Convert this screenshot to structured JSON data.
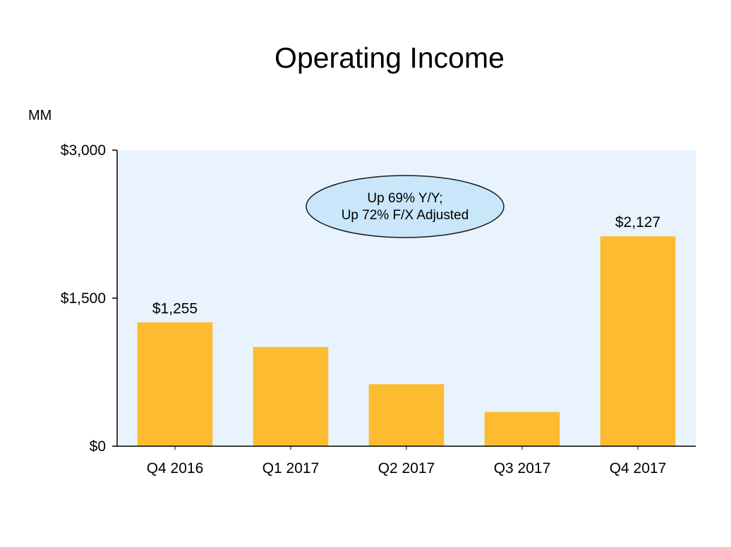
{
  "chart_data": {
    "type": "bar",
    "title": "Operating Income",
    "unit_label": "MM",
    "categories": [
      "Q4 2016",
      "Q1 2017",
      "Q2 2017",
      "Q3 2017",
      "Q4 2017"
    ],
    "values": [
      1255,
      1005,
      628,
      347,
      2127
    ],
    "data_labels": [
      "$1,255",
      "",
      "",
      "",
      "$2,127"
    ],
    "ylim": [
      0,
      3000
    ],
    "y_ticks": [
      0,
      1500,
      3000
    ],
    "y_tick_labels": [
      "$0",
      "$1,500",
      "$3,000"
    ],
    "xlabel": "",
    "ylabel": "",
    "grid": false,
    "legend": "none",
    "callout": {
      "lines": [
        "Up 69% Y/Y;",
        "Up 72% F/X Adjusted"
      ]
    },
    "colors": {
      "bar": "#FDBB30",
      "plot_background": "#E8F3FD",
      "callout_fill": "#C9E6FA",
      "axis": "#000000"
    }
  }
}
